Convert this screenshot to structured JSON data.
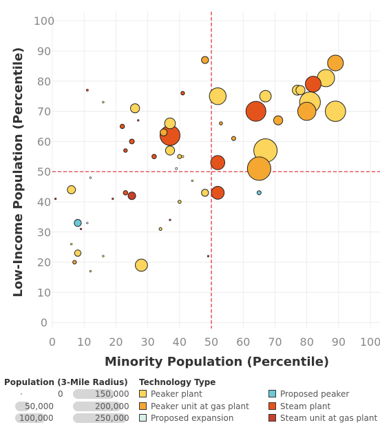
{
  "chart_data": {
    "type": "scatter",
    "xlabel": "Minority Population (Percentile)",
    "ylabel": "Low-Income Population (Percentile)",
    "xlim": [
      0,
      103
    ],
    "ylim": [
      -2,
      103
    ],
    "x_ticks": [
      0,
      10,
      20,
      30,
      40,
      50,
      60,
      70,
      80,
      90,
      100
    ],
    "y_ticks": [
      0,
      10,
      20,
      30,
      40,
      50,
      60,
      70,
      80,
      90,
      100
    ],
    "reference_lines": {
      "x": 50,
      "y": 50,
      "color": "#e0262b"
    },
    "grid": true,
    "points": [
      {
        "x": 48,
        "y": 87,
        "pop": 30000,
        "type": "Peaker unit at gas plant"
      },
      {
        "x": 11,
        "y": 77,
        "pop": 3000,
        "type": "Steam plant"
      },
      {
        "x": 16,
        "y": 73,
        "pop": 2000,
        "type": "Peaker plant"
      },
      {
        "x": 26,
        "y": 71,
        "pop": 50000,
        "type": "Peaker plant"
      },
      {
        "x": 41,
        "y": 76,
        "pop": 8000,
        "type": "Steam plant"
      },
      {
        "x": 52,
        "y": 75,
        "pop": 170000,
        "type": "Peaker plant"
      },
      {
        "x": 67,
        "y": 75,
        "pop": 80000,
        "type": "Peaker plant"
      },
      {
        "x": 77,
        "y": 77,
        "pop": 60000,
        "type": "Peaker plant"
      },
      {
        "x": 78,
        "y": 77,
        "pop": 50000,
        "type": "Peaker plant"
      },
      {
        "x": 82,
        "y": 79,
        "pop": 150000,
        "type": "Steam plant"
      },
      {
        "x": 86,
        "y": 81,
        "pop": 180000,
        "type": "Peaker plant"
      },
      {
        "x": 89,
        "y": 86,
        "pop": 150000,
        "type": "Peaker unit at gas plant"
      },
      {
        "x": 81,
        "y": 73,
        "pop": 260000,
        "type": "Peaker plant"
      },
      {
        "x": 80,
        "y": 70,
        "pop": 200000,
        "type": "Peaker unit at gas plant"
      },
      {
        "x": 89,
        "y": 70,
        "pop": 250000,
        "type": "Peaker plant"
      },
      {
        "x": 64,
        "y": 70,
        "pop": 240000,
        "type": "Steam plant"
      },
      {
        "x": 71,
        "y": 67,
        "pop": 50000,
        "type": "Peaker unit at gas plant"
      },
      {
        "x": 67,
        "y": 57,
        "pop": 330000,
        "type": "Peaker plant"
      },
      {
        "x": 65,
        "y": 51,
        "pop": 330000,
        "type": "Peaker unit at gas plant"
      },
      {
        "x": 22,
        "y": 65,
        "pop": 12000,
        "type": "Steam plant"
      },
      {
        "x": 27,
        "y": 67,
        "pop": 1500,
        "type": "Steam unit at gas plant"
      },
      {
        "x": 37,
        "y": 66,
        "pop": 70000,
        "type": "Peaker plant"
      },
      {
        "x": 35,
        "y": 63,
        "pop": 30000,
        "type": "Peaker unit at gas plant"
      },
      {
        "x": 37,
        "y": 62,
        "pop": 240000,
        "type": "Steam plant"
      },
      {
        "x": 53,
        "y": 66,
        "pop": 6000,
        "type": "Peaker unit at gas plant"
      },
      {
        "x": 57,
        "y": 61,
        "pop": 10000,
        "type": "Peaker unit at gas plant"
      },
      {
        "x": 25,
        "y": 60,
        "pop": 14000,
        "type": "Steam plant"
      },
      {
        "x": 23,
        "y": 57,
        "pop": 8000,
        "type": "Steam plant"
      },
      {
        "x": 37,
        "y": 57,
        "pop": 50000,
        "type": "Peaker plant"
      },
      {
        "x": 32,
        "y": 55,
        "pop": 12000,
        "type": "Steam plant"
      },
      {
        "x": 40,
        "y": 55,
        "pop": 10000,
        "type": "Peaker plant"
      },
      {
        "x": 41,
        "y": 55,
        "pop": 3000,
        "type": "Peaker plant"
      },
      {
        "x": 52,
        "y": 53,
        "pop": 120000,
        "type": "Steam plant"
      },
      {
        "x": 39,
        "y": 51,
        "pop": 3000,
        "type": "Proposed expansion"
      },
      {
        "x": 12,
        "y": 48,
        "pop": 2000,
        "type": "Proposed expansion"
      },
      {
        "x": 44,
        "y": 47,
        "pop": 2000,
        "type": "Peaker plant"
      },
      {
        "x": 6,
        "y": 44,
        "pop": 40000,
        "type": "Peaker plant"
      },
      {
        "x": 23,
        "y": 43,
        "pop": 12000,
        "type": "Steam plant"
      },
      {
        "x": 25,
        "y": 42,
        "pop": 35000,
        "type": "Steam unit at gas plant"
      },
      {
        "x": 48,
        "y": 43,
        "pop": 30000,
        "type": "Peaker plant"
      },
      {
        "x": 52,
        "y": 43,
        "pop": 100000,
        "type": "Steam plant"
      },
      {
        "x": 65,
        "y": 43,
        "pop": 10000,
        "type": "Proposed peaker"
      },
      {
        "x": 1,
        "y": 41,
        "pop": 2000,
        "type": "Steam unit at gas plant"
      },
      {
        "x": 19,
        "y": 41,
        "pop": 1500,
        "type": "Steam unit at gas plant"
      },
      {
        "x": 40,
        "y": 40,
        "pop": 6000,
        "type": "Peaker plant"
      },
      {
        "x": 8,
        "y": 33,
        "pop": 30000,
        "type": "Proposed peaker"
      },
      {
        "x": 11,
        "y": 33,
        "pop": 1500,
        "type": "Proposed expansion"
      },
      {
        "x": 37,
        "y": 34,
        "pop": 1500,
        "type": "Steam unit at gas plant"
      },
      {
        "x": 9,
        "y": 31,
        "pop": 1500,
        "type": "Steam unit at gas plant"
      },
      {
        "x": 34,
        "y": 31,
        "pop": 5000,
        "type": "Peaker plant"
      },
      {
        "x": 6,
        "y": 26,
        "pop": 2000,
        "type": "Peaker plant"
      },
      {
        "x": 8,
        "y": 23,
        "pop": 25000,
        "type": "Peaker plant"
      },
      {
        "x": 16,
        "y": 22,
        "pop": 2000,
        "type": "Peaker plant"
      },
      {
        "x": 7,
        "y": 20,
        "pop": 8000,
        "type": "Peaker unit at gas plant"
      },
      {
        "x": 28,
        "y": 19,
        "pop": 90000,
        "type": "Peaker plant"
      },
      {
        "x": 49,
        "y": 22,
        "pop": 1500,
        "type": "Steam unit at gas plant"
      },
      {
        "x": 12,
        "y": 17,
        "pop": 1500,
        "type": "Peaker plant"
      }
    ],
    "size_legend": {
      "title": "Population (3-Mile Radius)",
      "items": [
        {
          "label": "0",
          "value": 0
        },
        {
          "label": "50,000",
          "value": 50000
        },
        {
          "label": "100,000",
          "value": 100000
        },
        {
          "label": "150,000",
          "value": 150000
        },
        {
          "label": "200,000",
          "value": 200000
        },
        {
          "label": "250,000",
          "value": 250000
        }
      ]
    },
    "type_legend": {
      "title": "Technology Type",
      "items": [
        {
          "label": "Peaker plant",
          "color": "#fbd55c"
        },
        {
          "label": "Peaker unit at gas plant",
          "color": "#f5a831"
        },
        {
          "label": "Proposed expansion",
          "color": "#d6efe8"
        },
        {
          "label": "Proposed peaker",
          "color": "#6dc8d6"
        },
        {
          "label": "Steam plant",
          "color": "#e5531c"
        },
        {
          "label": "Steam unit at gas plant",
          "color": "#c8402a"
        }
      ]
    }
  }
}
